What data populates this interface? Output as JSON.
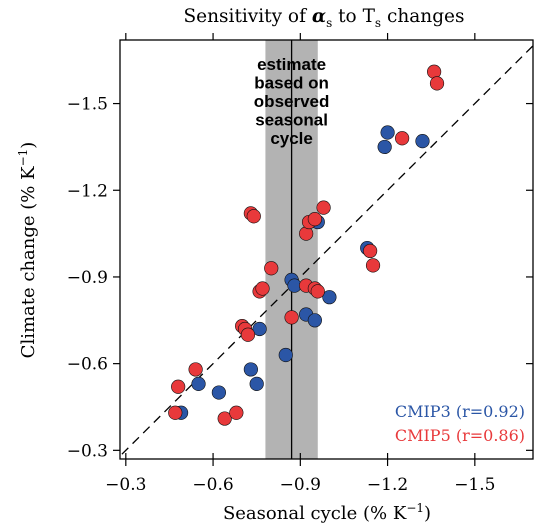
{
  "chart_data": {
    "type": "scatter",
    "title_prefix": "Sensitivity of",
    "title_symbol": "α",
    "title_symbol_sub": "s",
    "title_mid": "to T",
    "title_mid_sub": "s",
    "title_suffix": "changes",
    "xlabel": "Seasonal cycle (% K",
    "xlabel_exp": "−1",
    "xlabel_close": ")",
    "ylabel": "Climate change (% K",
    "ylabel_exp": "−1",
    "ylabel_close": ")",
    "x_direction": "reversed (more negative to the right)",
    "y_direction": "reversed (more negative upward)",
    "xlim": [
      -0.28,
      -1.7
    ],
    "ylim": [
      -0.27,
      -1.72
    ],
    "x_ticks": [
      -0.3,
      -0.6,
      -0.9,
      -1.2,
      -1.5
    ],
    "x_tick_labels": [
      "−0.3",
      "−0.6",
      "−0.9",
      "−1.2",
      "−1.5"
    ],
    "y_ticks": [
      -0.3,
      -0.6,
      -0.9,
      -1.2,
      -1.5
    ],
    "y_tick_labels": [
      "−0.3",
      "−0.6",
      "−0.9",
      "−1.2",
      "−1.5"
    ],
    "grid": false,
    "one_to_one_line": true,
    "observed_estimate": {
      "value": -0.87,
      "range": [
        -0.78,
        -0.96
      ],
      "label_lines": [
        "estimate",
        "based on",
        "observed",
        "seasonal",
        "cycle"
      ],
      "band_color": "#b3b3b3"
    },
    "legend_position": "bottom-right",
    "series": [
      {
        "name": "CMIP3",
        "correlation_label": "(r=0.92)",
        "color": "#2b56a6",
        "points": [
          {
            "x": -0.49,
            "y": -0.43
          },
          {
            "x": -0.55,
            "y": -0.53
          },
          {
            "x": -0.62,
            "y": -0.5
          },
          {
            "x": -0.73,
            "y": -0.58
          },
          {
            "x": -0.75,
            "y": -0.53
          },
          {
            "x": -0.76,
            "y": -0.72
          },
          {
            "x": -0.85,
            "y": -0.63
          },
          {
            "x": -0.87,
            "y": -0.89
          },
          {
            "x": -0.88,
            "y": -0.87
          },
          {
            "x": -0.92,
            "y": -0.77
          },
          {
            "x": -0.95,
            "y": -0.75
          },
          {
            "x": -1.0,
            "y": -0.83
          },
          {
            "x": -0.96,
            "y": -1.09
          },
          {
            "x": -1.13,
            "y": -1.0
          },
          {
            "x": -1.19,
            "y": -1.35
          },
          {
            "x": -1.2,
            "y": -1.4
          },
          {
            "x": -1.32,
            "y": -1.37
          }
        ]
      },
      {
        "name": "CMIP5",
        "correlation_label": "(r=0.86)",
        "color": "#e8393b",
        "points": [
          {
            "x": -0.47,
            "y": -0.43
          },
          {
            "x": -0.48,
            "y": -0.52
          },
          {
            "x": -0.54,
            "y": -0.58
          },
          {
            "x": -0.64,
            "y": -0.41
          },
          {
            "x": -0.68,
            "y": -0.43
          },
          {
            "x": -0.7,
            "y": -0.73
          },
          {
            "x": -0.71,
            "y": -0.72
          },
          {
            "x": -0.72,
            "y": -0.7
          },
          {
            "x": -0.73,
            "y": -1.12
          },
          {
            "x": -0.74,
            "y": -1.11
          },
          {
            "x": -0.76,
            "y": -0.85
          },
          {
            "x": -0.77,
            "y": -0.86
          },
          {
            "x": -0.8,
            "y": -0.93
          },
          {
            "x": -0.87,
            "y": -0.76
          },
          {
            "x": -0.92,
            "y": -0.87
          },
          {
            "x": -0.95,
            "y": -0.86
          },
          {
            "x": -0.96,
            "y": -0.85
          },
          {
            "x": -0.92,
            "y": -1.05
          },
          {
            "x": -0.93,
            "y": -1.09
          },
          {
            "x": -0.95,
            "y": -1.1
          },
          {
            "x": -0.98,
            "y": -1.14
          },
          {
            "x": -1.14,
            "y": -0.99
          },
          {
            "x": -1.15,
            "y": -0.94
          },
          {
            "x": -1.25,
            "y": -1.38
          },
          {
            "x": -1.36,
            "y": -1.61
          },
          {
            "x": -1.37,
            "y": -1.57
          }
        ]
      }
    ]
  }
}
